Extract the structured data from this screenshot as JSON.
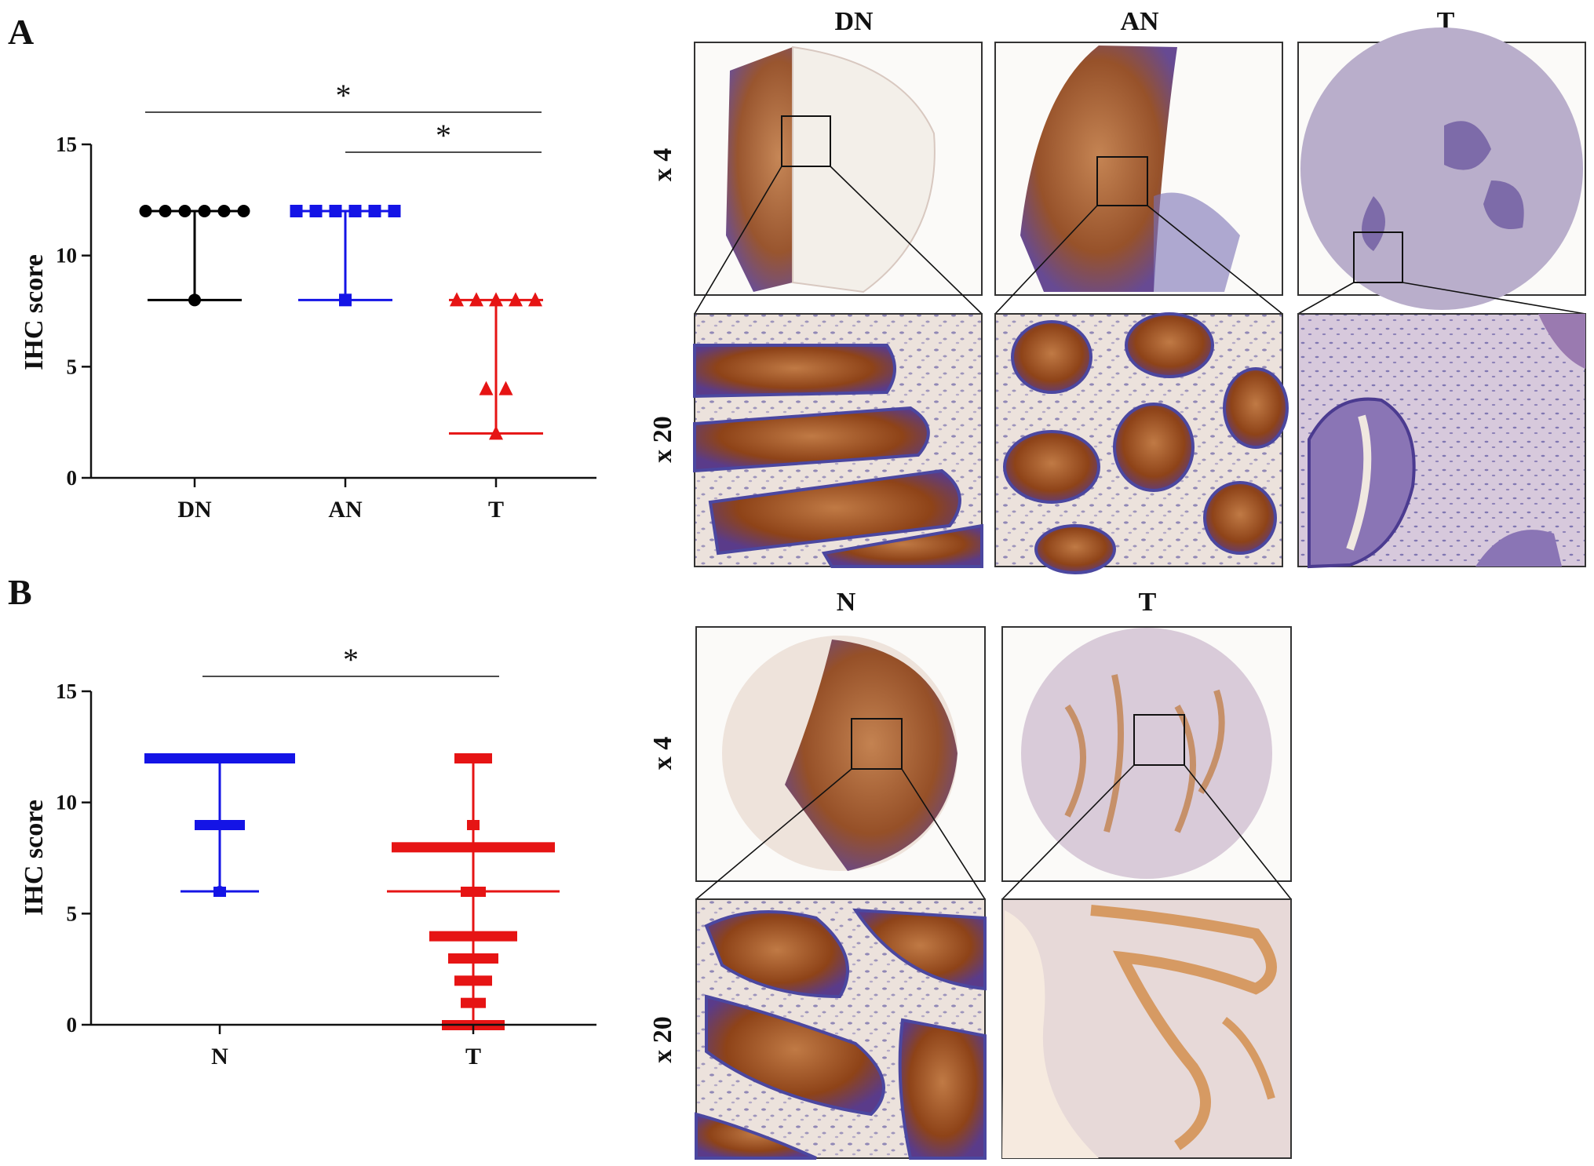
{
  "panels": {
    "A": {
      "letter": "A",
      "image_columns": [
        "DN",
        "AN",
        "T"
      ],
      "magnifications": [
        "x 4",
        "x 20"
      ]
    },
    "B": {
      "letter": "B",
      "image_columns": [
        "N",
        "T"
      ],
      "magnifications": [
        "x 4",
        "x 20"
      ]
    }
  },
  "colors": {
    "DN": "#000000",
    "AN": "#1414e6",
    "T": "#e61414",
    "N": "#1414e6",
    "tissue_stroma": "#e9d8cf",
    "stain_brown": "#9a4a1c",
    "hematoxylin_blue": "#5e5aa6",
    "tissue_background": "#f2ede8"
  },
  "chart_data": [
    {
      "panel": "A",
      "type": "scatter",
      "ylabel": "IHC score",
      "xlabel": "",
      "ylim": [
        0,
        15
      ],
      "yticks": [
        0,
        5,
        10,
        15
      ],
      "categories": [
        "DN",
        "AN",
        "T"
      ],
      "series": [
        {
          "name": "DN",
          "marker": "circle",
          "color": "#000000",
          "values": [
            12,
            12,
            12,
            12,
            12,
            12,
            8
          ],
          "range": [
            8,
            12
          ]
        },
        {
          "name": "AN",
          "marker": "square",
          "color": "#1414e6",
          "values": [
            12,
            12,
            12,
            12,
            12,
            12,
            8
          ],
          "range": [
            8,
            12
          ]
        },
        {
          "name": "T",
          "marker": "triangle",
          "color": "#e61414",
          "values": [
            8,
            8,
            8,
            8,
            8,
            4,
            4,
            2
          ],
          "range": [
            2,
            8
          ]
        }
      ],
      "comparisons": [
        {
          "from": "DN",
          "to": "T",
          "label": "*"
        },
        {
          "from": "AN",
          "to": "T",
          "label": "*"
        }
      ]
    },
    {
      "panel": "B",
      "type": "scatter",
      "ylabel": "IHC score",
      "xlabel": "",
      "ylim": [
        0,
        15
      ],
      "yticks": [
        0,
        5,
        10,
        15
      ],
      "categories": [
        "N",
        "T"
      ],
      "series": [
        {
          "name": "N",
          "marker": "square",
          "color": "#1414e6",
          "levels": [
            {
              "value": 12,
              "count": 12
            },
            {
              "value": 9,
              "count": 4
            },
            {
              "value": 6,
              "count": 1
            }
          ],
          "range": [
            6,
            12
          ]
        },
        {
          "name": "T",
          "marker": "square",
          "color": "#e61414",
          "levels": [
            {
              "value": 12,
              "count": 3
            },
            {
              "value": 9,
              "count": 1
            },
            {
              "value": 8,
              "count": 13
            },
            {
              "value": 6,
              "count": 2
            },
            {
              "value": 4,
              "count": 7
            },
            {
              "value": 3,
              "count": 4
            },
            {
              "value": 2,
              "count": 3
            },
            {
              "value": 1,
              "count": 2
            },
            {
              "value": 0,
              "count": 5
            }
          ],
          "range": [
            0,
            12
          ],
          "line": 6
        }
      ],
      "comparisons": [
        {
          "from": "N",
          "to": "T",
          "label": "*"
        }
      ]
    }
  ]
}
